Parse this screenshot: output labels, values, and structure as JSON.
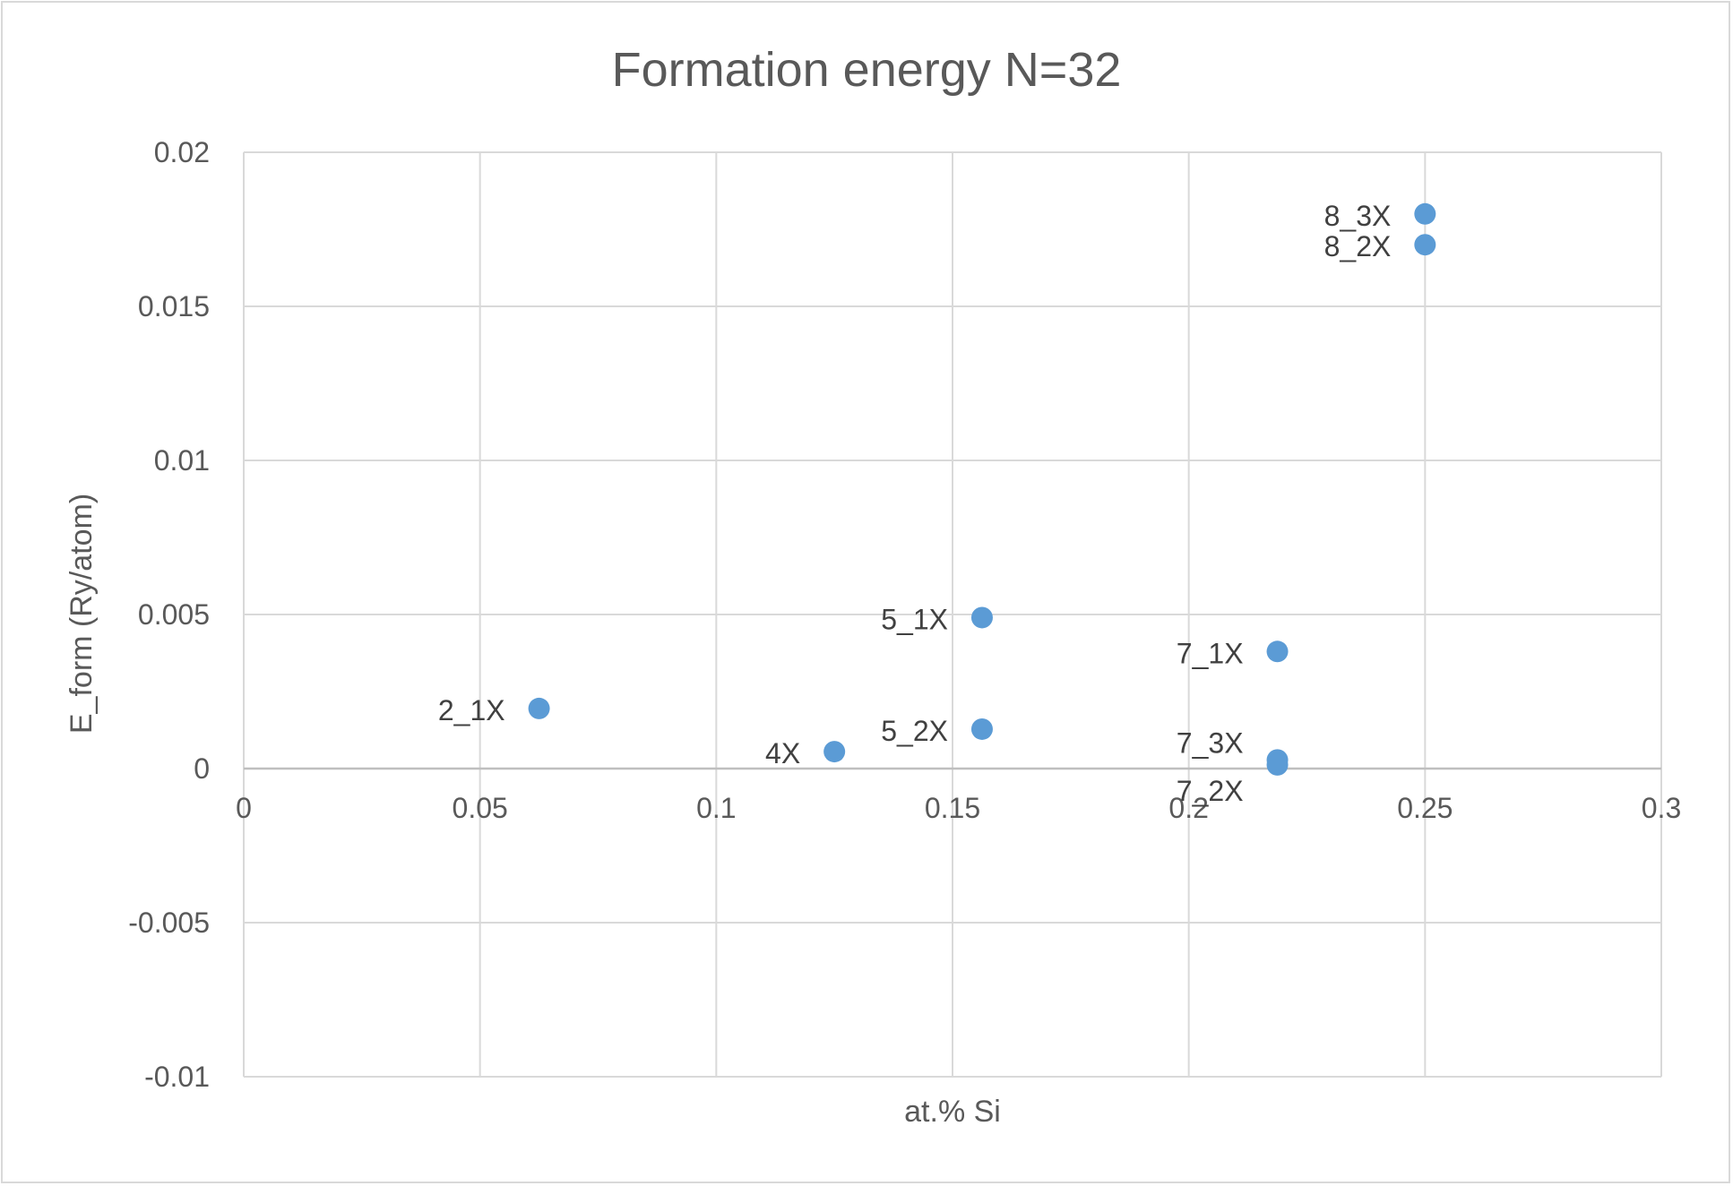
{
  "chart_data": {
    "type": "scatter",
    "title": "Formation energy N=32",
    "xlabel": "at.% Si",
    "ylabel": "E_form (Ry/atom)",
    "xlim": [
      0,
      0.3
    ],
    "ylim": [
      -0.01,
      0.02
    ],
    "x_ticks": [
      0,
      0.05,
      0.1,
      0.15,
      0.2,
      0.25,
      0.3
    ],
    "x_tick_labels": [
      "0",
      "0.05",
      "0.1",
      "0.15",
      "0.2",
      "0.25",
      "0.3"
    ],
    "y_ticks": [
      -0.01,
      -0.005,
      0,
      0.005,
      0.01,
      0.015,
      0.02
    ],
    "y_tick_labels": [
      "-0.01",
      "-0.005",
      "0",
      "0.005",
      "0.01",
      "0.015",
      "0.02"
    ],
    "grid": true,
    "legend": "none",
    "marker_color": "#5b9bd5",
    "points": [
      {
        "label": "2_1X",
        "x": 0.0625,
        "y": 0.00195
      },
      {
        "label": "4X",
        "x": 0.125,
        "y": 0.00055
      },
      {
        "label": "5_1X",
        "x": 0.15625,
        "y": 0.0049
      },
      {
        "label": "5_2X",
        "x": 0.15625,
        "y": 0.00128
      },
      {
        "label": "7_1X",
        "x": 0.21875,
        "y": 0.0038
      },
      {
        "label": "7_3X",
        "x": 0.21875,
        "y": 0.00028
      },
      {
        "label": "7_2X",
        "x": 0.21875,
        "y": 0.00012
      },
      {
        "label": "8_3X",
        "x": 0.25,
        "y": 0.018
      },
      {
        "label": "8_2X",
        "x": 0.25,
        "y": 0.017
      }
    ]
  }
}
